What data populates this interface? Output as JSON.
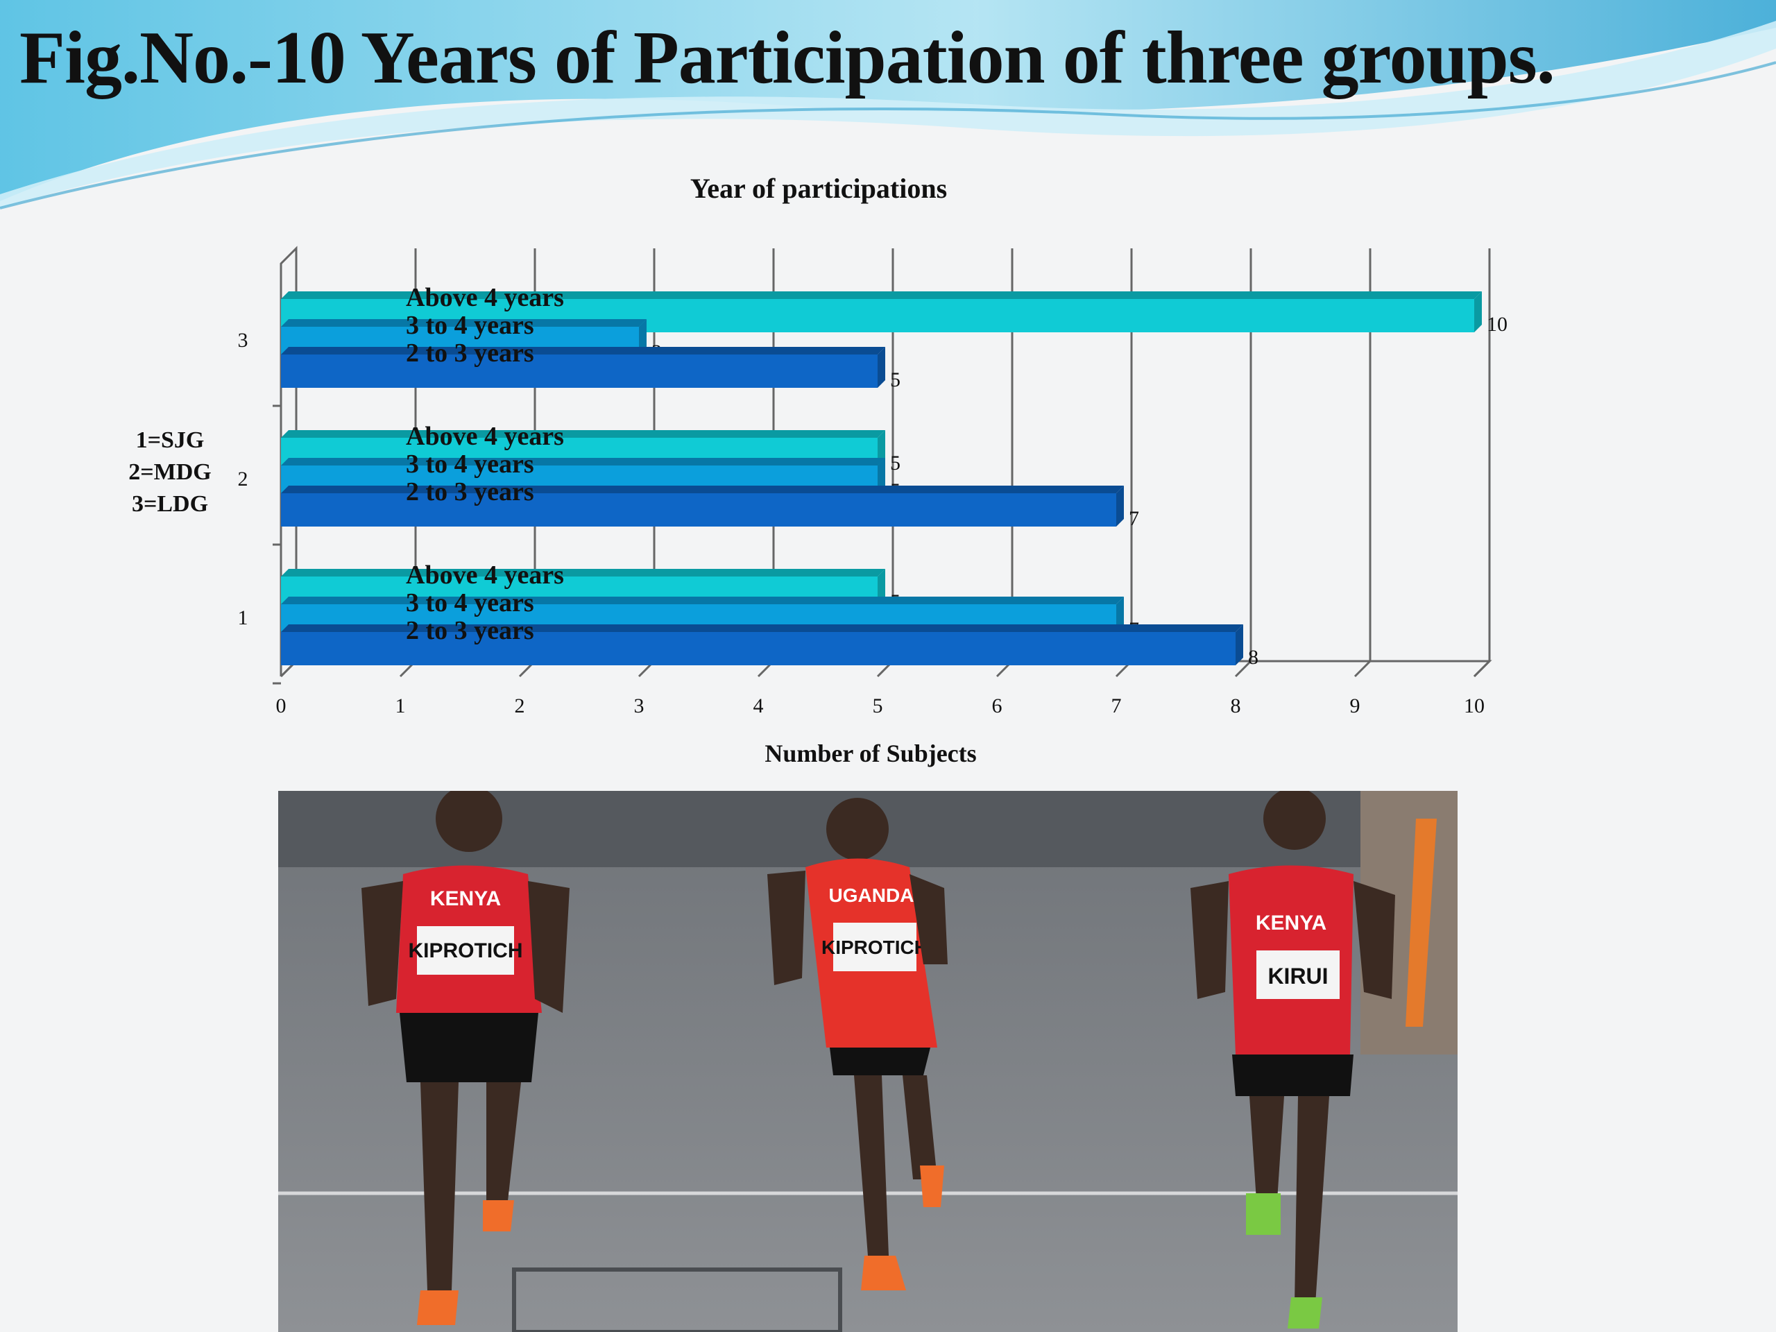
{
  "slide": {
    "title": "Fig.No.-10  Years of Participation of three groups.",
    "group_legend": [
      "1=SJG",
      "2=MDG",
      "3=LDG"
    ]
  },
  "colors": {
    "above_4": "#10cbd5",
    "three_to_4": "#0b9fdc",
    "two_to_3": "#0e66c6",
    "gridline": "#666666",
    "swoosh_light": "#8fd9ef",
    "swoosh_dark": "#3fb3dc"
  },
  "chart_data": {
    "type": "bar",
    "orientation": "horizontal",
    "three_d": true,
    "title": "Year of participations",
    "xlabel": "Number of Subjects",
    "ylabel": "",
    "xlim": [
      0,
      10
    ],
    "x_ticks": [
      "0",
      "1",
      "2",
      "3",
      "4",
      "5",
      "6",
      "7",
      "8",
      "9",
      "10"
    ],
    "categories": [
      "1",
      "2",
      "3"
    ],
    "grid": true,
    "series": [
      {
        "name": "2 to 3 years",
        "values": [
          8,
          7,
          5
        ],
        "color": "#0e66c6"
      },
      {
        "name": "3 to 4 years",
        "values": [
          7,
          5,
          3
        ],
        "color": "#0b9fdc"
      },
      {
        "name": "Above 4 years",
        "values": [
          5,
          5,
          10
        ],
        "color": "#10cbd5"
      }
    ],
    "data_labels": {
      "2 to 3 years": [
        "8",
        "7",
        "5"
      ],
      "3 to 4 years": [
        "7",
        "5",
        "3"
      ],
      "Above 4 years": [
        "5",
        "5",
        "10"
      ]
    }
  },
  "photo": {
    "icon": "marathon-runners-photo",
    "bib_texts": [
      "KENYA",
      "KIPROTICH",
      "UGANDA",
      "KIPROTICH",
      "KENYA",
      "KIRUI"
    ]
  }
}
